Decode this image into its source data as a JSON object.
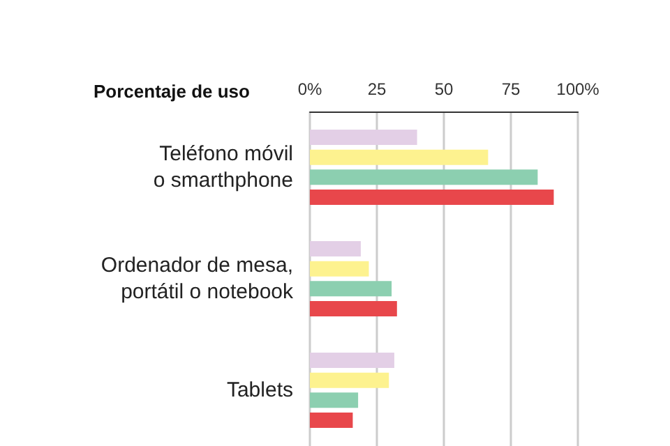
{
  "chart_data": {
    "type": "bar",
    "orientation": "horizontal",
    "title": "Porcentaje de uso",
    "categories": [
      "Teléfono móvil\no smarthphone",
      "Ordenador de mesa,\nportátil o notebook",
      "Tablets"
    ],
    "series": [
      {
        "color": "#e3cfe6",
        "values": [
          40,
          19,
          31.5
        ]
      },
      {
        "color": "#fdf28f",
        "values": [
          66.5,
          22,
          29.5
        ]
      },
      {
        "color": "#8ccfb0",
        "values": [
          85,
          30.5,
          18
        ]
      },
      {
        "color": "#e8474b",
        "values": [
          91,
          32.5,
          16
        ]
      }
    ],
    "xlim": [
      0,
      100
    ],
    "xticks": [
      {
        "value": 0,
        "label": "0%"
      },
      25,
      50,
      75,
      {
        "value": 100,
        "label": "100%"
      }
    ],
    "grid": "x"
  }
}
